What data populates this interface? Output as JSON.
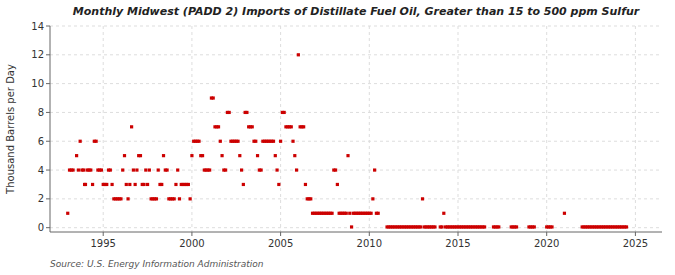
{
  "chart_data": {
    "type": "scatter",
    "title": "Monthly Midwest (PADD 2) Imports of Distillate Fuel Oil, Greater than 15 to 500 ppm Sulfur",
    "ylabel": "Thousand Barrels per Day",
    "source": "Source: U.S. Energy Information Administration",
    "color": "#cc0000",
    "marker": "square",
    "grid": true,
    "xlim": [
      1992.0,
      2026.5
    ],
    "ylim": [
      -0.3,
      14
    ],
    "xticks": [
      1995,
      2000,
      2005,
      2010,
      2015,
      2020,
      2025
    ],
    "yticks": [
      0,
      2,
      4,
      6,
      8,
      10,
      12,
      14
    ],
    "x": [
      1993.0,
      1993.1,
      1993.2,
      1993.3,
      1993.5,
      1993.6,
      1993.7,
      1993.8,
      1993.9,
      1993.95,
      1994.0,
      1994.1,
      1994.2,
      1994.3,
      1994.4,
      1994.5,
      1994.6,
      1994.7,
      1994.8,
      1994.9,
      1995.0,
      1995.1,
      1995.2,
      1995.3,
      1995.4,
      1995.5,
      1995.6,
      1995.7,
      1995.8,
      1995.9,
      1996.0,
      1996.1,
      1996.2,
      1996.3,
      1996.4,
      1996.5,
      1996.6,
      1996.7,
      1996.8,
      1996.9,
      1997.0,
      1997.1,
      1997.2,
      1997.3,
      1997.4,
      1997.5,
      1997.6,
      1997.7,
      1997.8,
      1997.9,
      1998.0,
      1998.1,
      1998.2,
      1998.3,
      1998.4,
      1998.5,
      1998.6,
      1998.7,
      1998.8,
      1998.9,
      1999.0,
      1999.1,
      1999.2,
      1999.3,
      1999.4,
      1999.5,
      1999.6,
      1999.7,
      1999.8,
      1999.9,
      2000.0,
      2000.1,
      2000.2,
      2000.3,
      2000.4,
      2000.5,
      2000.6,
      2000.7,
      2000.8,
      2000.9,
      2001.0,
      2001.1,
      2001.2,
      2001.3,
      2001.4,
      2001.5,
      2001.6,
      2001.7,
      2001.8,
      2001.9,
      2002.0,
      2002.1,
      2002.2,
      2002.3,
      2002.4,
      2002.5,
      2002.6,
      2002.7,
      2002.8,
      2002.9,
      2003.0,
      2003.1,
      2003.2,
      2003.3,
      2003.4,
      2003.5,
      2003.6,
      2003.7,
      2003.8,
      2003.9,
      2004.0,
      2004.1,
      2004.2,
      2004.3,
      2004.4,
      2004.5,
      2004.6,
      2004.7,
      2004.8,
      2004.9,
      2005.0,
      2005.1,
      2005.2,
      2005.3,
      2005.4,
      2005.5,
      2005.6,
      2005.7,
      2005.8,
      2005.9,
      2006.0,
      2006.1,
      2006.2,
      2006.3,
      2006.4,
      2006.5,
      2006.6,
      2006.7,
      2006.8,
      2006.9,
      2007.0,
      2007.1,
      2007.2,
      2007.3,
      2007.4,
      2007.5,
      2007.6,
      2007.7,
      2007.8,
      2007.9,
      2008.0,
      2008.1,
      2008.2,
      2008.3,
      2008.4,
      2008.5,
      2008.6,
      2008.7,
      2008.8,
      2008.9,
      2009.0,
      2009.1,
      2009.2,
      2009.3,
      2009.4,
      2009.5,
      2009.6,
      2009.7,
      2009.8,
      2009.9,
      2010.0,
      2010.1,
      2010.2,
      2010.3,
      2010.4,
      2010.5,
      2011.0,
      2011.1,
      2011.2,
      2011.3,
      2011.4,
      2011.5,
      2011.6,
      2011.7,
      2011.8,
      2011.9,
      2012.0,
      2012.1,
      2012.2,
      2012.3,
      2012.4,
      2012.5,
      2012.6,
      2012.7,
      2012.8,
      2012.9,
      2013.0,
      2013.1,
      2013.2,
      2013.3,
      2013.4,
      2013.5,
      2013.6,
      2013.7,
      2014.0,
      2014.1,
      2014.2,
      2014.3,
      2014.4,
      2014.5,
      2014.6,
      2014.7,
      2014.8,
      2014.9,
      2015.0,
      2015.1,
      2015.2,
      2015.3,
      2015.4,
      2015.5,
      2015.6,
      2015.7,
      2015.8,
      2015.9,
      2016.0,
      2016.1,
      2016.2,
      2016.3,
      2016.4,
      2016.5,
      2017.0,
      2017.1,
      2017.2,
      2017.3,
      2018.0,
      2018.1,
      2018.2,
      2018.3,
      2019.0,
      2019.1,
      2019.2,
      2019.3,
      2020.0,
      2020.1,
      2020.2,
      2020.3,
      2021.0,
      2022.0,
      2022.1,
      2022.2,
      2022.3,
      2022.4,
      2022.5,
      2022.6,
      2022.7,
      2022.8,
      2022.9,
      2023.0,
      2023.1,
      2023.2,
      2023.3,
      2023.4,
      2023.5,
      2023.6,
      2023.7,
      2023.8,
      2023.9,
      2024.0,
      2024.1,
      2024.2,
      2024.3,
      2024.4,
      2024.5
    ],
    "values": [
      1,
      4,
      4,
      4,
      5,
      4,
      6,
      4,
      4,
      3,
      3,
      4,
      4,
      4,
      3,
      6,
      6,
      4,
      4,
      4,
      3,
      3,
      3,
      4,
      4,
      3,
      2,
      2,
      2,
      2,
      2,
      4,
      5,
      3,
      2,
      3,
      7,
      4,
      3,
      4,
      5,
      5,
      3,
      3,
      4,
      3,
      4,
      2,
      2,
      2,
      2,
      4,
      3,
      3,
      5,
      4,
      4,
      2,
      2,
      2,
      2,
      3,
      4,
      2,
      3,
      3,
      3,
      3,
      3,
      2,
      5,
      6,
      6,
      6,
      6,
      5,
      5,
      4,
      4,
      4,
      4,
      9,
      9,
      7,
      7,
      7,
      6,
      5,
      4,
      4,
      8,
      8,
      6,
      6,
      6,
      6,
      6,
      5,
      4,
      3,
      8,
      8,
      7,
      7,
      7,
      6,
      6,
      5,
      4,
      4,
      6,
      6,
      6,
      6,
      6,
      6,
      6,
      5,
      4,
      3,
      6,
      8,
      8,
      7,
      7,
      7,
      7,
      6,
      5,
      4,
      12,
      7,
      7,
      7,
      3,
      2,
      2,
      2,
      1,
      1,
      1,
      1,
      1,
      1,
      1,
      1,
      1,
      1,
      1,
      1,
      4,
      4,
      3,
      1,
      1,
      1,
      1,
      1,
      5,
      1,
      0.05,
      1,
      1,
      1,
      1,
      1,
      1,
      1,
      1,
      1,
      1,
      1,
      2,
      4,
      1,
      1,
      0.05,
      0.05,
      0.05,
      0.05,
      0.05,
      0.05,
      0.05,
      0.05,
      0.05,
      0.05,
      0.05,
      0.05,
      0.05,
      0.05,
      0.05,
      0.05,
      0.05,
      0.05,
      0.05,
      0.05,
      2,
      0.05,
      0.05,
      0.05,
      0.05,
      0.05,
      0.05,
      0.05,
      0.05,
      0.05,
      1,
      0.05,
      0.05,
      0.05,
      0.05,
      0.05,
      0.05,
      0.05,
      0.05,
      0.05,
      0.05,
      0.05,
      0.05,
      0.05,
      0.05,
      0.05,
      0.05,
      0.05,
      0.05,
      0.05,
      0.05,
      0.05,
      0.05,
      0.05,
      0.05,
      0.05,
      0.05,
      0.05,
      0.05,
      0.05,
      0.05,
      0.05,
      0.05,
      0.05,
      0.05,
      0.05,
      0.05,
      0.05,
      0.05,
      0.05,
      1,
      0.05,
      0.05,
      0.05,
      0.05,
      0.05,
      0.05,
      0.05,
      0.05,
      0.05,
      0.05,
      0.05,
      0.05,
      0.05,
      0.05,
      0.05,
      0.05,
      0.05,
      0.05,
      0.05,
      0.05,
      0.05,
      0.05,
      0.05,
      0.05,
      0.05,
      0.05
    ]
  }
}
